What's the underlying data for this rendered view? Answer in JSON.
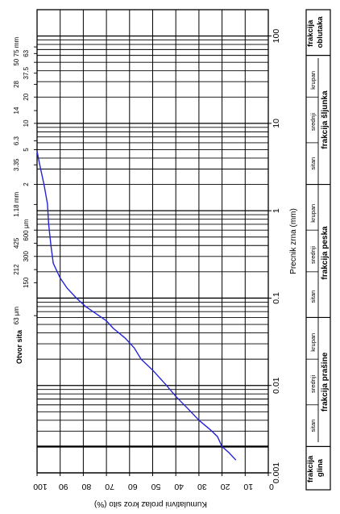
{
  "chart_data": {
    "type": "line",
    "title": "",
    "orientation": "rotated-90",
    "x_axis": {
      "label": "Precnik zrna (mm)",
      "scale": "log",
      "range": [
        0.001,
        200
      ],
      "ticks": [
        "0.001",
        "0.01",
        "0.1",
        "1",
        "10",
        "100"
      ]
    },
    "y_axis": {
      "label": "Kumulativni prolaz kroz sito (%)",
      "range": [
        0,
        100
      ],
      "ticks": [
        "100",
        "90",
        "80",
        "70",
        "60",
        "50",
        "40",
        "30",
        "20",
        "10",
        "0"
      ]
    },
    "sieve_title": "Otvor sita",
    "sieves": [
      "75 mm",
      "63",
      "50",
      "37.5",
      "28",
      "20",
      "14",
      "10",
      "6.3",
      "5",
      "3.35",
      "2",
      "1.18 mm",
      "600 µm",
      "425",
      "300",
      "212",
      "150",
      "63 µm"
    ],
    "fractions": {
      "glina": "frakcija\nglina",
      "prasina": {
        "label": "frakcija prašine",
        "subs": [
          "sitan",
          "srednji",
          "krupan"
        ]
      },
      "pesak": {
        "label": "frakcija peska",
        "subs": [
          "sitan",
          "srednji",
          "krupan"
        ]
      },
      "sljunak": {
        "label": "frakcija šljunka",
        "subs": [
          "sitan",
          "srednji",
          "krupan"
        ]
      },
      "oblutak": "frakcija\noblutaka"
    },
    "series": [
      {
        "color": "#2323d8",
        "points": [
          [
            0.0014,
            14
          ],
          [
            0.0017,
            17
          ],
          [
            0.002,
            20
          ],
          [
            0.0026,
            22
          ],
          [
            0.0031,
            25
          ],
          [
            0.004,
            30
          ],
          [
            0.0055,
            35
          ],
          [
            0.0075,
            40
          ],
          [
            0.01,
            44
          ],
          [
            0.015,
            50
          ],
          [
            0.02,
            55
          ],
          [
            0.027,
            58
          ],
          [
            0.035,
            62
          ],
          [
            0.045,
            67
          ],
          [
            0.055,
            70
          ],
          [
            0.065,
            74
          ],
          [
            0.08,
            79
          ],
          [
            0.1,
            83
          ],
          [
            0.13,
            87
          ],
          [
            0.17,
            90
          ],
          [
            0.25,
            93
          ],
          [
            0.4,
            94
          ],
          [
            0.7,
            95
          ],
          [
            1.2,
            95.5
          ],
          [
            2,
            97
          ],
          [
            3.5,
            99
          ],
          [
            4.8,
            100
          ]
        ]
      }
    ]
  }
}
